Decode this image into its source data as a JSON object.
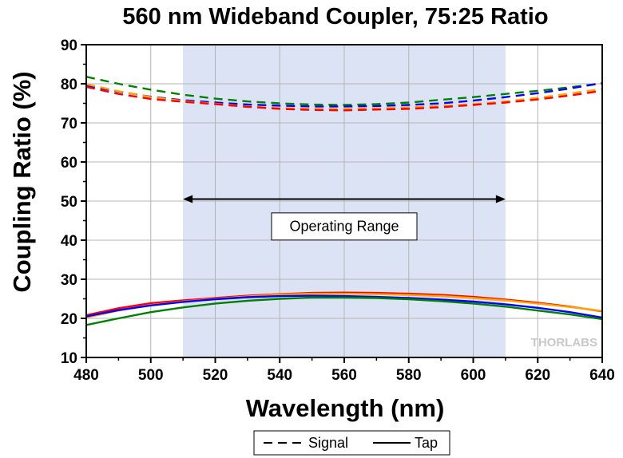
{
  "chart_data": {
    "type": "line",
    "title": "560 nm Wideband Coupler, 75:25 Ratio",
    "xlabel": "Wavelength (nm)",
    "ylabel": "Coupling Ratio (%)",
    "xlim": [
      480,
      640
    ],
    "ylim": [
      10,
      90
    ],
    "xticks": [
      480,
      500,
      520,
      540,
      560,
      580,
      600,
      620,
      640
    ],
    "yticks": [
      10,
      20,
      30,
      40,
      50,
      60,
      70,
      80,
      90
    ],
    "grid": true,
    "operating_range": {
      "start": 510,
      "end": 610,
      "label": "Operating Range",
      "arrow_y": 50.5,
      "label_y": 43.5
    },
    "legend": {
      "position": "bottom-center",
      "entries": [
        {
          "label": "Signal",
          "style": "dashed"
        },
        {
          "label": "Tap",
          "style": "solid"
        }
      ]
    },
    "x": [
      480,
      490,
      500,
      510,
      520,
      530,
      540,
      550,
      560,
      570,
      580,
      590,
      600,
      610,
      620,
      630,
      640
    ],
    "series": [
      {
        "group": "Signal",
        "color": "#008000",
        "style": "dashed",
        "values": [
          81.8,
          80.0,
          78.5,
          77.2,
          76.2,
          75.5,
          75.0,
          74.7,
          74.6,
          74.8,
          75.2,
          75.9,
          76.6,
          77.4,
          78.2,
          79.1,
          80.1
        ]
      },
      {
        "group": "Signal",
        "color": "#0000ff",
        "style": "dashed",
        "values": [
          79.6,
          78.0,
          76.7,
          75.8,
          75.2,
          74.7,
          74.4,
          74.2,
          74.2,
          74.3,
          74.6,
          75.0,
          75.7,
          76.6,
          77.6,
          78.8,
          80.2
        ]
      },
      {
        "group": "Signal",
        "color": "#ffa500",
        "style": "dashed",
        "values": [
          79.9,
          78.1,
          76.6,
          75.6,
          74.9,
          74.2,
          73.8,
          73.6,
          73.6,
          73.7,
          74.0,
          74.3,
          74.8,
          75.5,
          76.4,
          77.5,
          78.7
        ]
      },
      {
        "group": "Signal",
        "color": "#ff0000",
        "style": "dashed",
        "values": [
          79.2,
          77.4,
          76.1,
          75.4,
          74.8,
          74.1,
          73.6,
          73.3,
          73.2,
          73.4,
          73.6,
          74.0,
          74.6,
          75.2,
          76.0,
          77.0,
          78.2
        ]
      },
      {
        "group": "Tap",
        "color": "#ff0000",
        "style": "solid",
        "values": [
          20.8,
          22.6,
          23.9,
          24.6,
          25.2,
          25.8,
          26.2,
          26.5,
          26.6,
          26.5,
          26.3,
          26.0,
          25.5,
          24.8,
          24.0,
          23.0,
          21.8
        ]
      },
      {
        "group": "Tap",
        "color": "#ffa500",
        "style": "solid",
        "values": [
          20.2,
          22.0,
          23.4,
          24.3,
          25.0,
          25.6,
          26.1,
          26.3,
          26.3,
          26.2,
          26.0,
          25.7,
          25.2,
          24.6,
          23.8,
          22.9,
          21.9
        ]
      },
      {
        "group": "Tap",
        "color": "#0000ff",
        "style": "solid",
        "values": [
          20.5,
          22.1,
          23.3,
          24.2,
          24.9,
          25.4,
          25.7,
          25.8,
          25.7,
          25.5,
          25.2,
          24.8,
          24.3,
          23.6,
          22.7,
          21.6,
          20.2
        ]
      },
      {
        "group": "Tap",
        "color": "#008000",
        "style": "solid",
        "values": [
          18.3,
          20.0,
          21.6,
          22.8,
          23.8,
          24.5,
          25.0,
          25.3,
          25.3,
          25.2,
          24.9,
          24.4,
          23.8,
          23.0,
          22.0,
          21.0,
          19.8
        ]
      }
    ],
    "colors": {
      "shade": "#dce3f5",
      "grid": "#b4b4b4",
      "logo": "#c8c8c8"
    },
    "logo": {
      "text": "THORLABS"
    }
  }
}
